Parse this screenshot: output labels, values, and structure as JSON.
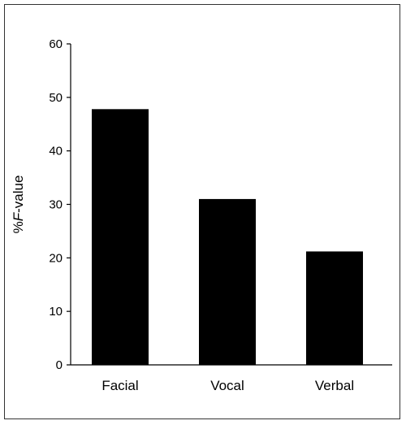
{
  "chart_data": {
    "type": "bar",
    "categories": [
      "Facial",
      "Vocal",
      "Verbal"
    ],
    "values": [
      47.8,
      31.0,
      21.2
    ],
    "ylabel_prefix": "%",
    "ylabel_italic": "F",
    "ylabel_suffix": "-value",
    "xlabel": "",
    "ylim": [
      0,
      60
    ],
    "yticks": [
      0,
      10,
      20,
      30,
      40,
      50,
      60
    ],
    "grid": false,
    "bar_color": "#000000"
  }
}
